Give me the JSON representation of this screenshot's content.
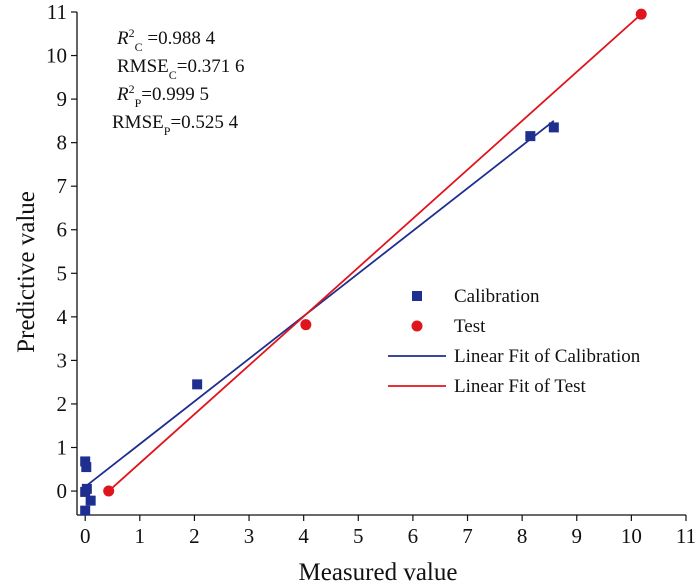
{
  "chart_data": {
    "type": "scatter",
    "xlabel": "Measured value",
    "ylabel": "Predictive value",
    "xlim": [
      -0.15,
      11
    ],
    "ylim": [
      -0.55,
      11
    ],
    "x_ticks": [
      0,
      1,
      2,
      3,
      4,
      5,
      6,
      7,
      8,
      9,
      10,
      11
    ],
    "y_ticks": [
      0,
      1,
      2,
      3,
      4,
      5,
      6,
      7,
      8,
      9,
      10,
      11
    ],
    "grid": false,
    "legend_position": "center-right",
    "annotations": [
      {
        "main": "R",
        "sup": "2",
        "sub": "C",
        "rest": " =0.988 4"
      },
      {
        "main": "RMSE",
        "sup": "",
        "sub": "C",
        "rest": "=0.371 6"
      },
      {
        "main": "R",
        "sup": "2",
        "sub": "P",
        "rest": "=0.999 5"
      },
      {
        "main": "RMSE",
        "sup": "",
        "sub": "P",
        "rest": "=0.525 4"
      }
    ],
    "series": [
      {
        "name": "Calibration",
        "kind": "scatter",
        "marker": "square",
        "color": "#1f2f8f",
        "points": [
          [
            0.0,
            0.68
          ],
          [
            0.02,
            0.55
          ],
          [
            0.0,
            -0.02
          ],
          [
            0.03,
            0.05
          ],
          [
            0.1,
            -0.22
          ],
          [
            0.0,
            -0.45
          ],
          [
            2.05,
            2.45
          ],
          [
            8.15,
            8.15
          ],
          [
            8.58,
            8.35
          ]
        ]
      },
      {
        "name": "Test",
        "kind": "scatter",
        "marker": "circle",
        "color": "#e0141c",
        "points": [
          [
            0.43,
            0.0
          ],
          [
            4.04,
            3.82
          ],
          [
            10.18,
            10.95
          ]
        ]
      },
      {
        "name": "Linear Fit of Calibration",
        "kind": "line",
        "color": "#1f2f8f",
        "line": [
          [
            0.0,
            0.1
          ],
          [
            8.58,
            8.5
          ]
        ]
      },
      {
        "name": "Linear Fit of Test",
        "kind": "line",
        "color": "#e0141c",
        "line": [
          [
            0.43,
            0.0
          ],
          [
            10.18,
            10.95
          ]
        ]
      }
    ]
  }
}
